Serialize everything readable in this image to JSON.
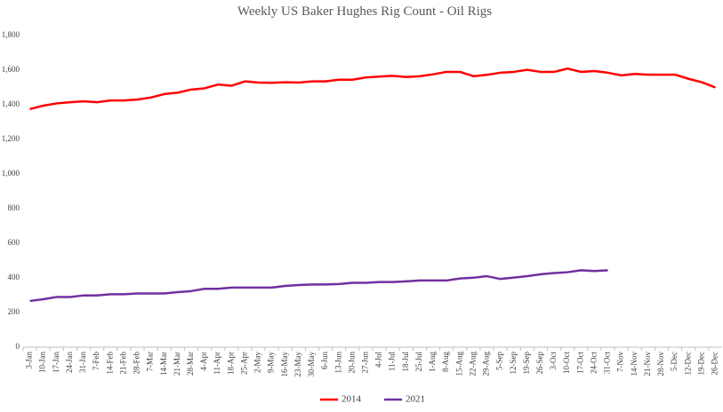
{
  "chart_data": {
    "type": "line",
    "title": "Weekly US Baker Hughes Rig Count - Oil Rigs",
    "categories": [
      "3-Jan",
      "10-Jan",
      "17-Jan",
      "24-Jan",
      "31-Jan",
      "7-Feb",
      "14-Feb",
      "21-Feb",
      "28-Feb",
      "7-Mar",
      "14-Mar",
      "21-Mar",
      "28-Mar",
      "4-Apr",
      "11-Apr",
      "18-Apr",
      "25-Apr",
      "2-May",
      "9-May",
      "16-May",
      "23-May",
      "30-May",
      "6-Jun",
      "13-Jun",
      "20-Jun",
      "27-Jun",
      "4-Jul",
      "11-Jul",
      "18-Jul",
      "25-Jul",
      "1-Aug",
      "8-Aug",
      "15-Aug",
      "22-Aug",
      "29-Aug",
      "5-Sep",
      "12-Sep",
      "19-Sep",
      "26-Sep",
      "3-Oct",
      "10-Oct",
      "17-Oct",
      "24-Oct",
      "31-Oct",
      "7-Nov",
      "14-Nov",
      "21-Nov",
      "28-Nov",
      "5-Dec",
      "12-Dec",
      "19-Dec",
      "26-Dec"
    ],
    "series": [
      {
        "name": "2014",
        "color": "#ff0000",
        "values": [
          1375,
          1395,
          1408,
          1415,
          1420,
          1415,
          1425,
          1425,
          1430,
          1442,
          1462,
          1470,
          1488,
          1495,
          1517,
          1510,
          1535,
          1528,
          1527,
          1530,
          1528,
          1535,
          1535,
          1545,
          1545,
          1558,
          1563,
          1567,
          1560,
          1565,
          1576,
          1590,
          1590,
          1565,
          1573,
          1585,
          1590,
          1602,
          1590,
          1590,
          1609,
          1590,
          1595,
          1585,
          1570,
          1578,
          1574,
          1574,
          1574,
          1550,
          1530,
          1500
        ]
      },
      {
        "name": "2021",
        "color": "#7030a0",
        "values": [
          267,
          277,
          290,
          290,
          299,
          299,
          306,
          306,
          310,
          310,
          310,
          318,
          324,
          337,
          337,
          344,
          344,
          344,
          344,
          354,
          359,
          362,
          362,
          365,
          372,
          372,
          376,
          376,
          380,
          385,
          385,
          385,
          397,
          401,
          410,
          394,
          402,
          410,
          421,
          428,
          433,
          444,
          440,
          444,
          null,
          null,
          null,
          null,
          null,
          null,
          null,
          null
        ]
      }
    ],
    "ylim": [
      0,
      1800
    ],
    "yticks": [
      0,
      200,
      400,
      600,
      800,
      {
        "value": 1000,
        "label": "1,000"
      },
      {
        "value": 1200,
        "label": "1,200"
      },
      {
        "value": 1400,
        "label": "1,400"
      },
      {
        "value": 1600,
        "label": "1,600"
      },
      {
        "value": 1800,
        "label": "1,800"
      }
    ],
    "grid": false,
    "legend": "bottom"
  }
}
